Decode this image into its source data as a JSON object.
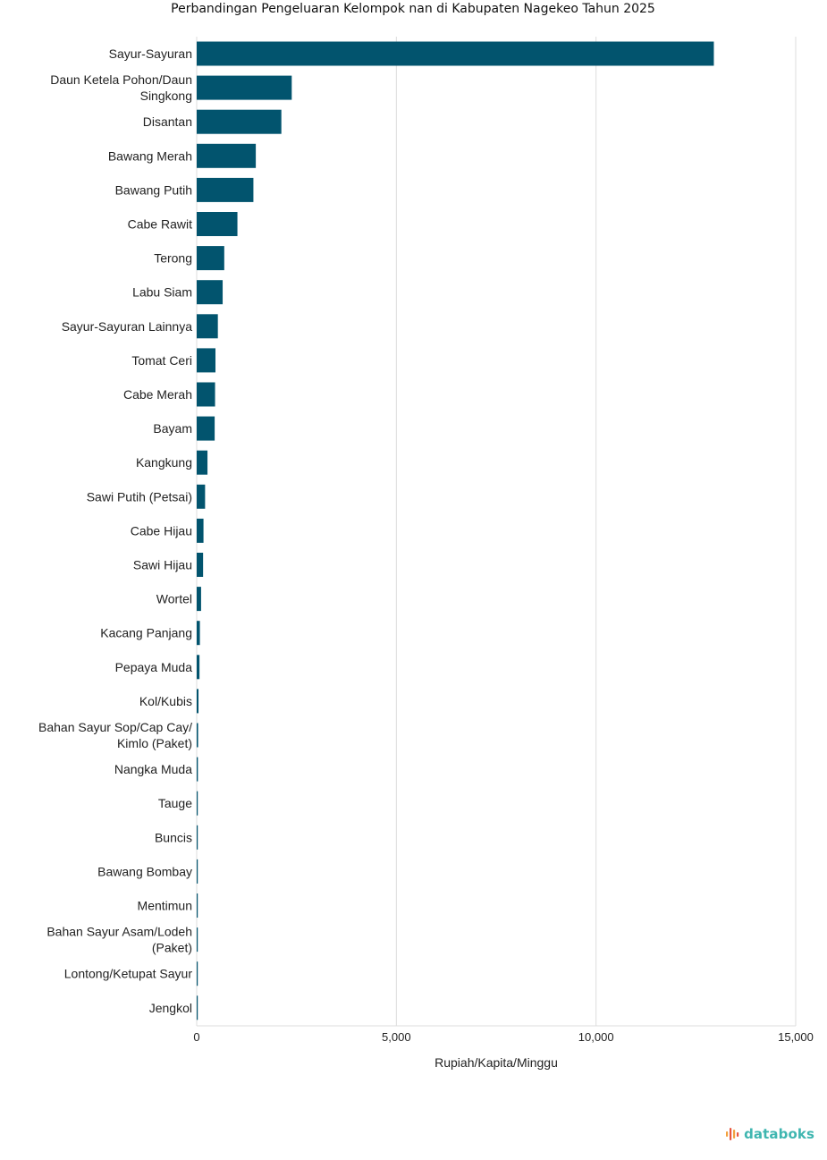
{
  "chart_data": {
    "type": "bar",
    "orientation": "horizontal",
    "title": "Perbandingan Pengeluaran Kelompok nan di Kabupaten Nagekeo Tahun 2025",
    "xlabel": "Rupiah/Kapita/Minggu",
    "ylabel": "",
    "xlim": [
      0,
      15000
    ],
    "x_ticks": [
      0,
      5000,
      10000,
      15000
    ],
    "x_tick_labels": [
      "0",
      "5,000",
      "10,000",
      "15,000"
    ],
    "grid": "vertical",
    "bar_color": "#02546e",
    "categories": [
      [
        "Sayur-Sayuran"
      ],
      [
        "Daun Ketela Pohon/Daun",
        "Singkong"
      ],
      [
        "Disantan"
      ],
      [
        "Bawang Merah"
      ],
      [
        "Bawang Putih"
      ],
      [
        "Cabe Rawit"
      ],
      [
        "Terong"
      ],
      [
        "Labu Siam"
      ],
      [
        "Sayur-Sayuran Lainnya"
      ],
      [
        "Tomat Ceri"
      ],
      [
        "Cabe Merah"
      ],
      [
        "Bayam"
      ],
      [
        "Kangkung"
      ],
      [
        "Sawi Putih (Petsai)"
      ],
      [
        "Cabe Hijau"
      ],
      [
        "Sawi Hijau"
      ],
      [
        "Wortel"
      ],
      [
        "Kacang Panjang"
      ],
      [
        "Pepaya Muda"
      ],
      [
        "Kol/Kubis"
      ],
      [
        "Bahan Sayur Sop/Cap Cay/",
        "Kimlo (Paket)"
      ],
      [
        "Nangka Muda"
      ],
      [
        "Tauge"
      ],
      [
        "Buncis"
      ],
      [
        "Bawang Bombay"
      ],
      [
        "Mentimun"
      ],
      [
        "Bahan Sayur Asam/Lodeh",
        "(Paket)"
      ],
      [
        "Lontong/Ketupat Sayur"
      ],
      [
        "Jengkol"
      ]
    ],
    "values": [
      12950,
      2380,
      2120,
      1480,
      1420,
      1020,
      690,
      650,
      530,
      470,
      460,
      450,
      270,
      210,
      170,
      160,
      110,
      80,
      70,
      45,
      35,
      30,
      25,
      20,
      15,
      12,
      8,
      5,
      2
    ]
  },
  "brand": {
    "name": "databoks",
    "colors": {
      "icon_red": "#e8553e",
      "icon_orange": "#f2a03d",
      "text": "#3fb6b0"
    }
  }
}
